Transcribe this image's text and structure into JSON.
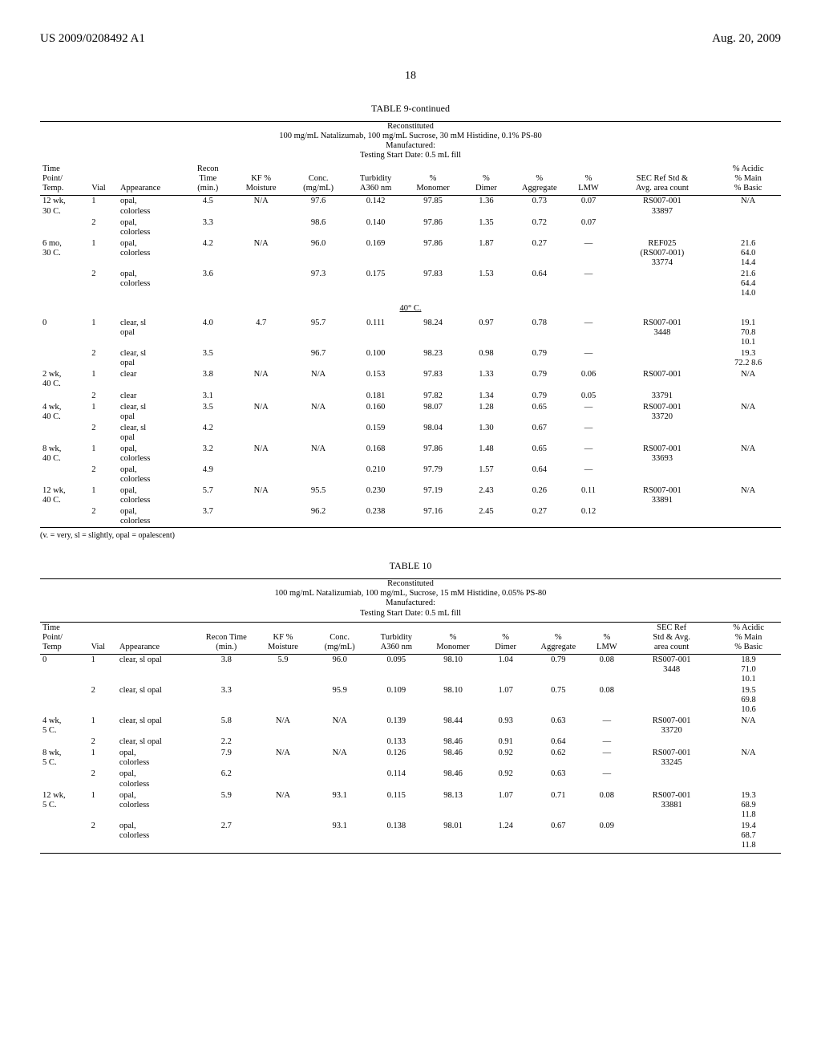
{
  "header": {
    "left": "US 2009/0208492 A1",
    "page": "18",
    "right": "Aug. 20, 2009"
  },
  "table9": {
    "title": "TABLE 9-continued",
    "subtitle": "Reconstituted\n100 mg/mL Natalizumab, 100 mg/mL Sucrose, 30 mM Histidine, 0.1% PS-80\nManufactured:\nTesting Start Date: 0.5 mL fill",
    "columns": [
      "Time\nPoint/\nTemp.",
      "Vial",
      "Appearance",
      "Recon\nTime\n(min.)",
      "KF %\nMoisture",
      "Conc.\n(mg/mL)",
      "Turbidity\nA360 nm",
      "%\nMonomer",
      "%\nDimer",
      "%\nAggregate",
      "%\nLMW",
      "SEC Ref Std &\nAvg. area count",
      "% Acidic\n% Main\n% Basic"
    ],
    "rows": [
      [
        "12 wk,\n30 C.",
        "1",
        "opal,\ncolorless",
        "4.5",
        "N/A",
        "97.6",
        "0.142",
        "97.85",
        "1.36",
        "0.73",
        "0.07",
        "RS007-001\n33897",
        "N/A"
      ],
      [
        "",
        "2",
        "opal,\ncolorless",
        "3.3",
        "",
        "98.6",
        "0.140",
        "97.86",
        "1.35",
        "0.72",
        "0.07",
        "",
        ""
      ],
      [
        "6 mo,\n30 C.",
        "1",
        "opal,\ncolorless",
        "4.2",
        "N/A",
        "96.0",
        "0.169",
        "97.86",
        "1.87",
        "0.27",
        "—",
        "REF025\n(RS007-001)\n33774",
        "21.6\n64.0\n14.4"
      ],
      [
        "",
        "2",
        "opal,\ncolorless",
        "3.6",
        "",
        "97.3",
        "0.175",
        "97.83",
        "1.53",
        "0.64",
        "—",
        "",
        "21.6\n64.4\n14.0"
      ]
    ],
    "section": "40° C.",
    "rows2": [
      [
        "0",
        "1",
        "clear, sl\nopal",
        "4.0",
        "4.7",
        "95.7",
        "0.111",
        "98.24",
        "0.97",
        "0.78",
        "—",
        "RS007-001\n3448",
        "19.1\n70.8\n10.1"
      ],
      [
        "",
        "2",
        "clear, sl\nopal",
        "3.5",
        "",
        "96.7",
        "0.100",
        "98.23",
        "0.98",
        "0.79",
        "—",
        "",
        "19.3\n72.2 8.6"
      ],
      [
        "2 wk,\n40 C.",
        "1",
        "clear",
        "3.8",
        "N/A",
        "N/A",
        "0.153",
        "97.83",
        "1.33",
        "0.79",
        "0.06",
        "RS007-001",
        "N/A"
      ],
      [
        "",
        "2",
        "clear",
        "3.1",
        "",
        "",
        "0.181",
        "97.82",
        "1.34",
        "0.79",
        "0.05",
        "33791",
        ""
      ],
      [
        "4 wk,\n40 C.",
        "1",
        "clear, sl\nopal",
        "3.5",
        "N/A",
        "N/A",
        "0.160",
        "98.07",
        "1.28",
        "0.65",
        "—",
        "RS007-001\n33720",
        "N/A"
      ],
      [
        "",
        "2",
        "clear, sl\nopal",
        "4.2",
        "",
        "",
        "0.159",
        "98.04",
        "1.30",
        "0.67",
        "—",
        "",
        ""
      ],
      [
        "8 wk,\n40 C.",
        "1",
        "opal,\ncolorless",
        "3.2",
        "N/A",
        "N/A",
        "0.168",
        "97.86",
        "1.48",
        "0.65",
        "—",
        "RS007-001\n33693",
        "N/A"
      ],
      [
        "",
        "2",
        "opal,\ncolorless",
        "4.9",
        "",
        "",
        "0.210",
        "97.79",
        "1.57",
        "0.64",
        "—",
        "",
        ""
      ],
      [
        "12 wk,\n40 C.",
        "1",
        "opal,\ncolorless",
        "5.7",
        "N/A",
        "95.5",
        "0.230",
        "97.19",
        "2.43",
        "0.26",
        "0.11",
        "RS007-001\n33891",
        "N/A"
      ],
      [
        "",
        "2",
        "opal,\ncolorless",
        "3.7",
        "",
        "96.2",
        "0.238",
        "97.16",
        "2.45",
        "0.27",
        "0.12",
        "",
        ""
      ]
    ],
    "footnote": "(v. = very, sl = slightly, opal = opalescent)"
  },
  "table10": {
    "title": "TABLE 10",
    "subtitle": "Reconstituted\n100 mg/mL Natalizumiab, 100 mg/mL, Sucrose, 15 mM Histidine, 0.05% PS-80\nManufactured:\nTesting Start Date: 0.5 mL fill",
    "columns": [
      "Time\nPoint/\nTemp",
      "Vial",
      "Appearance",
      "Recon Time\n(min.)",
      "KF %\nMoisture",
      "Conc.\n(mg/mL)",
      "Turbidity\nA360 nm",
      "%\nMonomer",
      "%\nDimer",
      "%\nAggregate",
      "%\nLMW",
      "SEC Ref\nStd & Avg.\narea count",
      "% Acidic\n% Main\n% Basic"
    ],
    "rows": [
      [
        "0",
        "1",
        "clear, sl opal",
        "3.8",
        "5.9",
        "96.0",
        "0.095",
        "98.10",
        "1.04",
        "0.79",
        "0.08",
        "RS007-001\n3448",
        "18.9\n71.0\n10.1"
      ],
      [
        "",
        "2",
        "clear, sl opal",
        "3.3",
        "",
        "95.9",
        "0.109",
        "98.10",
        "1.07",
        "0.75",
        "0.08",
        "",
        "19.5\n69.8\n10.6"
      ],
      [
        "4 wk,\n5 C.",
        "1",
        "clear, sl opal",
        "5.8",
        "N/A",
        "N/A",
        "0.139",
        "98.44",
        "0.93",
        "0.63",
        "—",
        "RS007-001\n33720",
        "N/A"
      ],
      [
        "",
        "2",
        "clear, sl opal",
        "2.2",
        "",
        "",
        "0.133",
        "98.46",
        "0.91",
        "0.64",
        "—",
        "",
        ""
      ],
      [
        "8 wk,\n5 C.",
        "1",
        "opal,\ncolorless",
        "7.9",
        "N/A",
        "N/A",
        "0.126",
        "98.46",
        "0.92",
        "0.62",
        "—",
        "RS007-001\n33245",
        "N/A"
      ],
      [
        "",
        "2",
        "opal,\ncolorless",
        "6.2",
        "",
        "",
        "0.114",
        "98.46",
        "0.92",
        "0.63",
        "—",
        "",
        ""
      ],
      [
        "12 wk,\n5 C.",
        "1",
        "opal,\ncolorless",
        "5.9",
        "N/A",
        "93.1",
        "0.115",
        "98.13",
        "1.07",
        "0.71",
        "0.08",
        "RS007-001\n33881",
        "19.3\n68.9\n11.8"
      ],
      [
        "",
        "2",
        "opal,\ncolorless",
        "2.7",
        "",
        "93.1",
        "0.138",
        "98.01",
        "1.24",
        "0.67",
        "0.09",
        "",
        "19.4\n68.7\n11.8"
      ]
    ]
  }
}
